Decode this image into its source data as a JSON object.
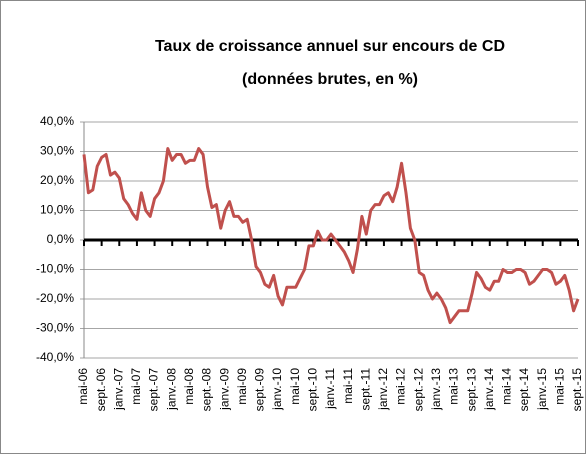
{
  "chart_data": {
    "type": "line",
    "title": "Taux de croissance annuel sur encours de CD",
    "subtitle": "(données brutes, en %)",
    "categories": [
      "mai-06",
      null,
      null,
      null,
      "sept.-06",
      null,
      null,
      null,
      "janv.-07",
      null,
      null,
      null,
      "mai-07",
      null,
      null,
      null,
      "sept.-07",
      null,
      null,
      null,
      "janv.-08",
      null,
      null,
      null,
      "mai-08",
      null,
      null,
      null,
      "sept.-08",
      null,
      null,
      null,
      "janv.-09",
      null,
      null,
      null,
      "mai-09",
      null,
      null,
      null,
      "sept.-09",
      null,
      null,
      null,
      "janv.-10",
      null,
      null,
      null,
      "mai-10",
      null,
      null,
      null,
      "sept.-10",
      null,
      null,
      null,
      "janv.-11",
      null,
      null,
      null,
      "mai-11",
      null,
      null,
      null,
      "sept.-11",
      null,
      null,
      null,
      "janv.-12",
      null,
      null,
      null,
      "mai-12",
      null,
      null,
      null,
      "sept.-12",
      null,
      null,
      null,
      "janv.-13",
      null,
      null,
      null,
      "mai-13",
      null,
      null,
      null,
      "sept.-13",
      null,
      null,
      null,
      "janv.-14",
      null,
      null,
      null,
      "mai-14",
      null,
      null,
      null,
      "sept.-14",
      null,
      null,
      null,
      "janv.-15",
      null,
      null,
      null,
      "mai-15",
      null,
      null,
      null,
      "sept.-15"
    ],
    "values": [
      29,
      16,
      17,
      25,
      28,
      29,
      22,
      23,
      21,
      14,
      12,
      9,
      7,
      16,
      10,
      8,
      14,
      16,
      20,
      31,
      27,
      29,
      29,
      26,
      27,
      27,
      31,
      29,
      18,
      11,
      12,
      4,
      10,
      13,
      8,
      8,
      6,
      7,
      0,
      -9,
      -11,
      -15,
      -16,
      -12,
      -19,
      -22,
      -16,
      -16,
      -16,
      -13,
      -10,
      -2,
      -2,
      3,
      0,
      0,
      2,
      0,
      -2,
      -4,
      -7,
      -11,
      -3,
      8,
      2,
      10,
      12,
      12,
      15,
      16,
      13,
      18,
      26,
      16,
      4,
      0,
      -11,
      -12,
      -17,
      -20,
      -18,
      -20,
      -23,
      -28,
      -26,
      -24,
      -24,
      -24,
      -18,
      -11,
      -13,
      -16,
      -17,
      -14,
      -14,
      -10,
      -11,
      -11,
      -10,
      -10,
      -11,
      -15,
      -14,
      -12,
      -10,
      -10,
      -11,
      -15,
      -14,
      -12,
      -17,
      -24,
      -20
    ],
    "color": "#c0504d",
    "ylim": [
      -40,
      40
    ],
    "yticks": [
      {
        "value": -40,
        "label": "-40,0%"
      },
      {
        "value": -30,
        "label": "-30,0%"
      },
      {
        "value": -20,
        "label": "-20,0%"
      },
      {
        "value": -10,
        "label": "-10,0%"
      },
      {
        "value": 0,
        "label": "0,0%"
      },
      {
        "value": 10,
        "label": "10,0%"
      },
      {
        "value": 20,
        "label": "20,0%"
      },
      {
        "value": 30,
        "label": "30,0%"
      },
      {
        "value": 40,
        "label": "40,0%"
      }
    ],
    "grid": true
  }
}
